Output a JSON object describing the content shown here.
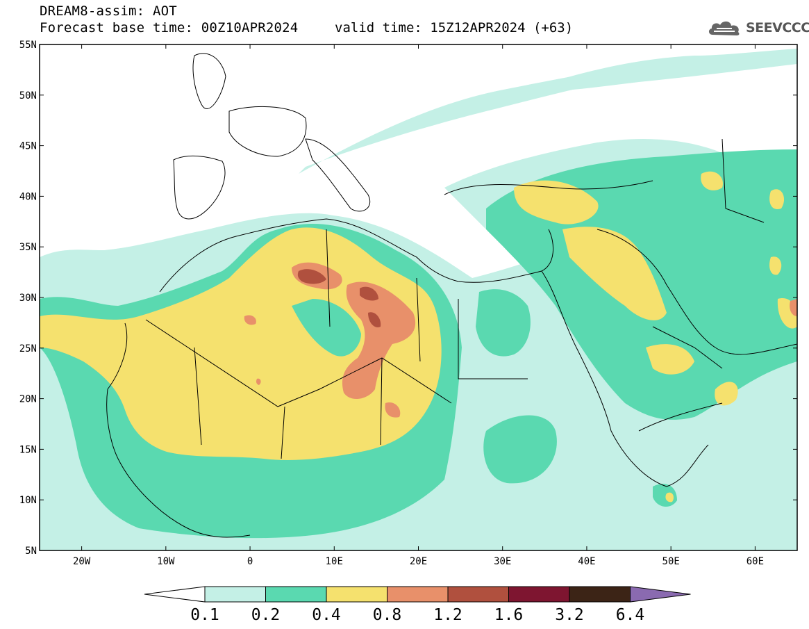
{
  "header": {
    "title": "DREAM8-assim: AOT",
    "base_time": "Forecast base time: 00Z10APR2024",
    "valid_time": "valid time: 15Z12APR2024 (+63)"
  },
  "logo": {
    "text": "SEEVCCC",
    "icon": "cloud-logo-icon"
  },
  "axes": {
    "lat_ticks": [
      {
        "label": "55N",
        "value": 55
      },
      {
        "label": "50N",
        "value": 50
      },
      {
        "label": "45N",
        "value": 45
      },
      {
        "label": "40N",
        "value": 40
      },
      {
        "label": "35N",
        "value": 35
      },
      {
        "label": "30N",
        "value": 30
      },
      {
        "label": "25N",
        "value": 25
      },
      {
        "label": "20N",
        "value": 20
      },
      {
        "label": "15N",
        "value": 15
      },
      {
        "label": "10N",
        "value": 10
      },
      {
        "label": "5N",
        "value": 5
      }
    ],
    "lon_ticks": [
      {
        "label": "20W",
        "value": -20
      },
      {
        "label": "10W",
        "value": -10
      },
      {
        "label": "0",
        "value": 0
      },
      {
        "label": "10E",
        "value": 10
      },
      {
        "label": "20E",
        "value": 20
      },
      {
        "label": "30E",
        "value": 30
      },
      {
        "label": "40E",
        "value": 40
      },
      {
        "label": "50E",
        "value": 50
      },
      {
        "label": "60E",
        "value": 60
      }
    ],
    "lon_range": [
      -25,
      65
    ],
    "lat_range": [
      5,
      55
    ]
  },
  "colorbar": {
    "labels": [
      "0.1",
      "0.2",
      "0.4",
      "0.8",
      "1.2",
      "1.6",
      "3.2",
      "6.4"
    ],
    "colors": [
      "#ffffff",
      "#c4f0e6",
      "#5ad9b0",
      "#f5e16e",
      "#e8906a",
      "#b0503e",
      "#7e1530",
      "#3c2416",
      "#8a6ab0"
    ]
  }
}
